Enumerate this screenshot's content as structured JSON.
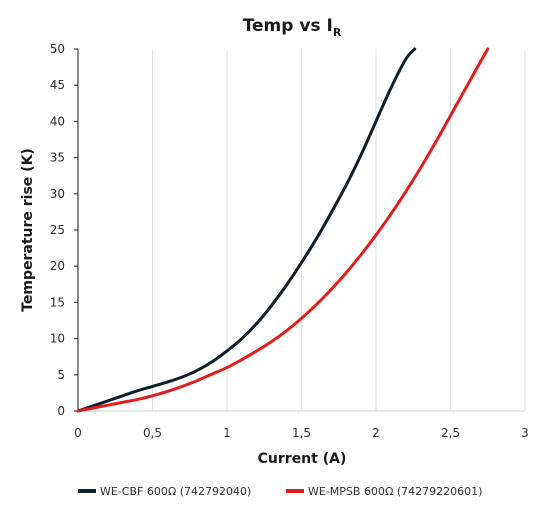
{
  "chart_data": {
    "type": "line",
    "title": "Temp vs I",
    "title_subscript": "R",
    "xlabel": "Current (A)",
    "ylabel": "Temperature rise (K)",
    "xlim": [
      0,
      3
    ],
    "ylim": [
      0,
      50
    ],
    "xticks": [
      "0",
      "0,5",
      "1",
      "1,5",
      "2",
      "2,5",
      "3"
    ],
    "yticks": [
      "0",
      "5",
      "10",
      "15",
      "20",
      "25",
      "30",
      "35",
      "40",
      "45",
      "50"
    ],
    "grid": "vertical",
    "legend_position": "bottom",
    "series": [
      {
        "name": "WE-CBF 600Ω  (742792040)",
        "color": "#0f1e2a",
        "x": [
          0,
          0.1,
          0.2,
          0.3,
          0.4,
          0.5,
          0.6,
          0.7,
          0.8,
          0.9,
          1.0,
          1.1,
          1.2,
          1.3,
          1.4,
          1.5,
          1.6,
          1.7,
          1.8,
          1.9,
          2.0,
          2.1,
          2.2,
          2.26
        ],
        "y": [
          0,
          0.7,
          1.4,
          2.1,
          2.8,
          3.4,
          4.0,
          4.7,
          5.6,
          6.8,
          8.3,
          10.0,
          12.1,
          14.6,
          17.4,
          20.5,
          23.8,
          27.4,
          31.2,
          35.4,
          40.0,
          44.6,
          48.6,
          50
        ]
      },
      {
        "name": "WE-MPSB 600Ω  (74279220601)",
        "color": "#e01e1e",
        "x": [
          0,
          0.1,
          0.2,
          0.3,
          0.4,
          0.5,
          0.6,
          0.7,
          0.8,
          0.9,
          1.0,
          1.1,
          1.2,
          1.3,
          1.4,
          1.5,
          1.6,
          1.7,
          1.8,
          1.9,
          2.0,
          2.1,
          2.2,
          2.3,
          2.4,
          2.5,
          2.6,
          2.7,
          2.75
        ],
        "y": [
          0,
          0.4,
          0.8,
          1.2,
          1.6,
          2.1,
          2.7,
          3.4,
          4.2,
          5.1,
          6.0,
          7.1,
          8.3,
          9.6,
          11.1,
          12.8,
          14.7,
          16.8,
          19.1,
          21.6,
          24.3,
          27.2,
          30.3,
          33.6,
          37.1,
          40.8,
          44.5,
          48.2,
          50
        ]
      }
    ]
  }
}
